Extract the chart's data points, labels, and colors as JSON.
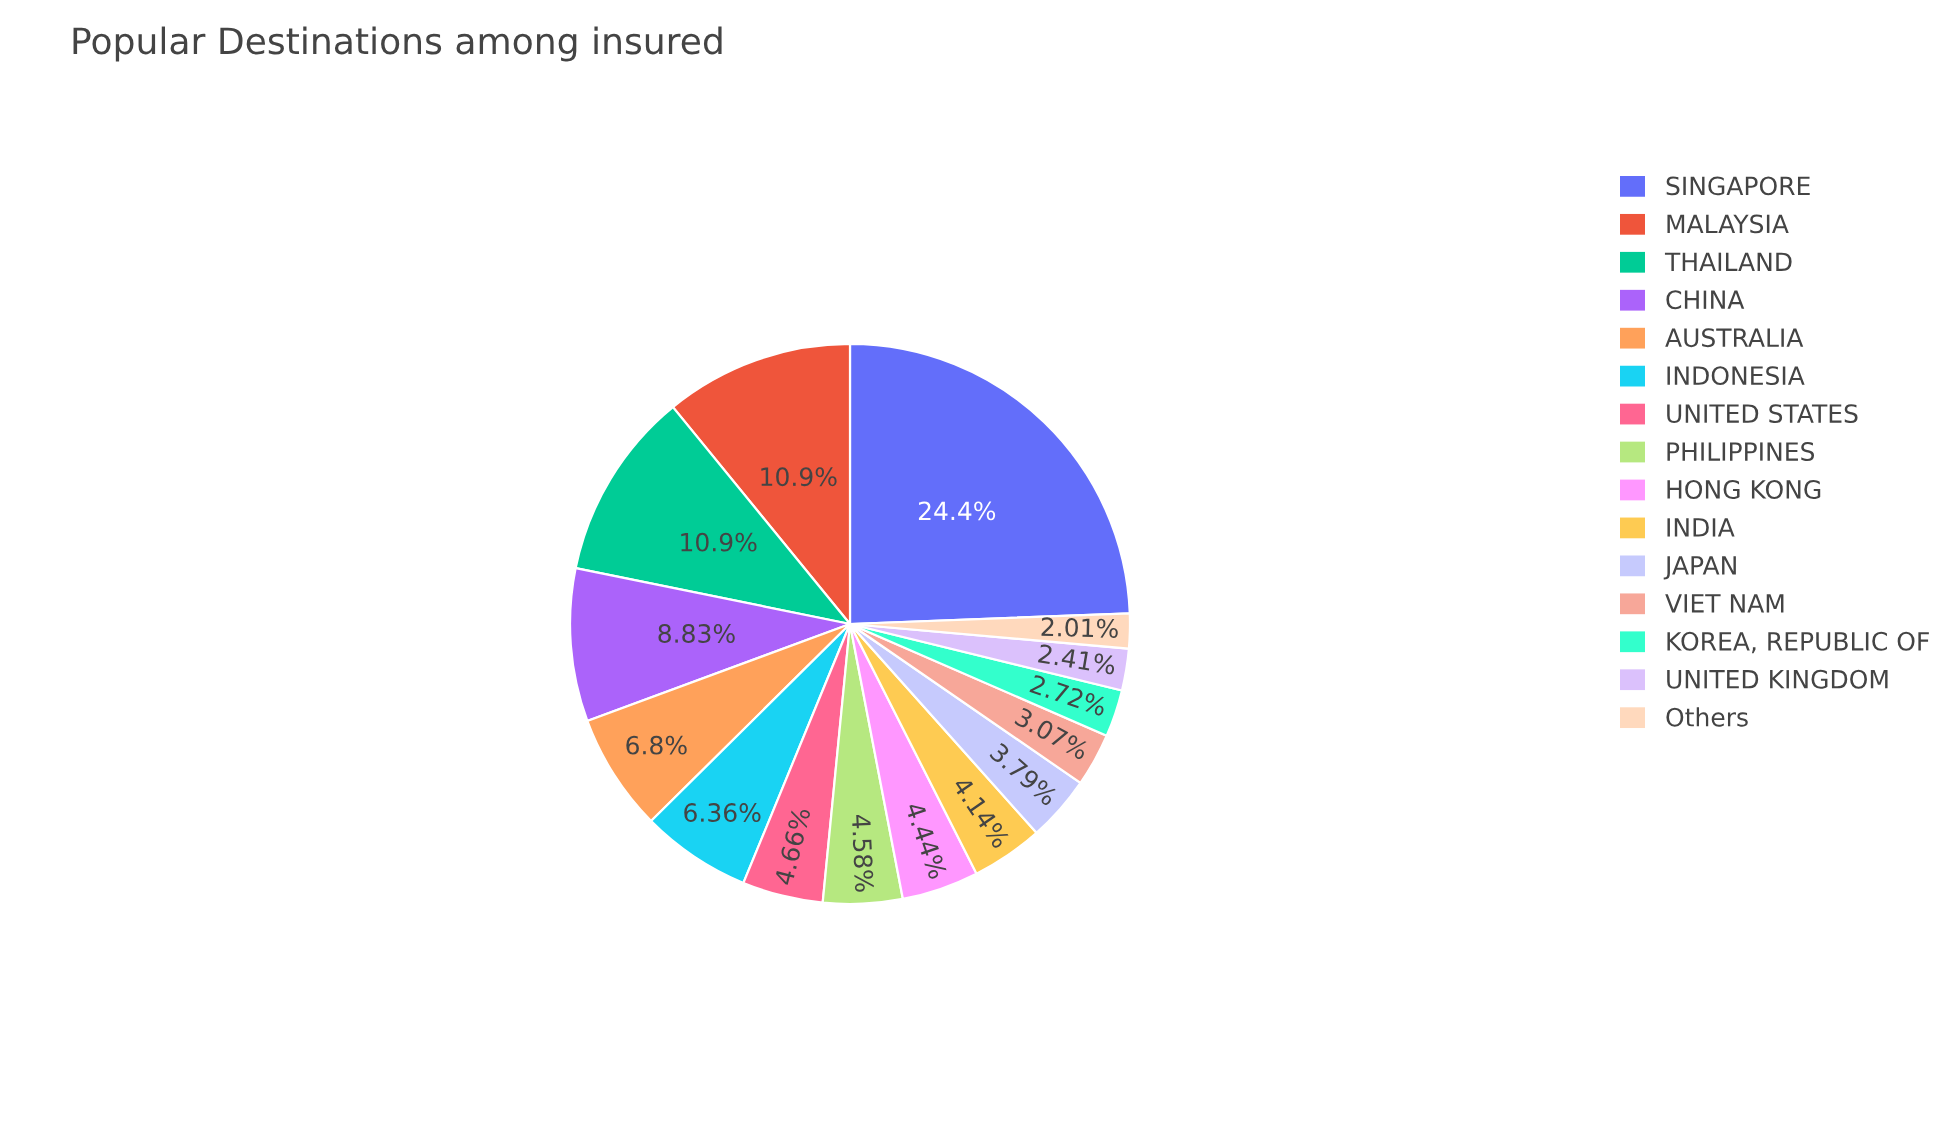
{
  "chart_data": {
    "type": "pie",
    "title": "Popular Destinations among insured",
    "categories": [
      "SINGAPORE",
      "MALAYSIA",
      "THAILAND",
      "CHINA",
      "AUSTRALIA",
      "INDONESIA",
      "UNITED STATES",
      "PHILIPPINES",
      "HONG KONG",
      "INDIA",
      "JAPAN",
      "VIET NAM",
      "KOREA, REPUBLIC OF",
      "UNITED KINGDOM",
      "Others"
    ],
    "values": [
      24.4,
      10.9,
      10.9,
      8.83,
      6.8,
      6.36,
      4.66,
      4.58,
      4.44,
      4.14,
      3.79,
      3.07,
      2.72,
      2.41,
      2.01
    ],
    "value_labels": [
      "24.4%",
      "10.9%",
      "10.9%",
      "8.83%",
      "6.8%",
      "6.36%",
      "4.66%",
      "4.58%",
      "4.44%",
      "4.14%",
      "3.79%",
      "3.07%",
      "2.72%",
      "2.41%",
      "2.01%"
    ],
    "colors": [
      "#636efa",
      "#ef553b",
      "#00cc96",
      "#ab63fa",
      "#ffa15a",
      "#19d3f3",
      "#ff6692",
      "#b6e880",
      "#ff97ff",
      "#fecb52",
      "#c6cafd",
      "#f7a799",
      "#33ffcc",
      "#dbc1fc",
      "#ffd9bd"
    ],
    "legend": "top right"
  }
}
